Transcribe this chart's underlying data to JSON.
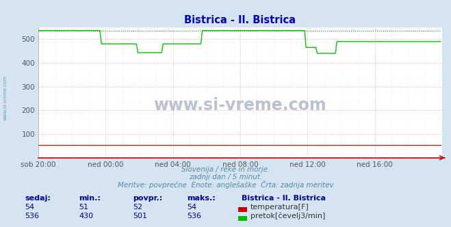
{
  "title": "Bistrica - Il. Bistrica",
  "title_color": "#0000cc",
  "bg_color": "#d4e4f0",
  "plot_bg_color": "#ffffff",
  "xlim": [
    0,
    288
  ],
  "ylim": [
    0,
    550
  ],
  "yticks": [
    100,
    200,
    300,
    400,
    500
  ],
  "xtick_labels": [
    "sob 20:00",
    "ned 00:00",
    "ned 04:00",
    "ned 08:00",
    "ned 12:00",
    "ned 16:00"
  ],
  "xtick_positions": [
    0,
    48,
    96,
    144,
    192,
    240
  ],
  "grid_color_h": "#ff9999",
  "temp_color": "#dd0000",
  "flow_color": "#00cc00",
  "flow_max_color": "#00aa00",
  "temp_value": 54,
  "flow_max": 536,
  "subtitle1": "Slovenija / reke in morje.",
  "subtitle2": "zadnji dan / 5 minut.",
  "subtitle3": "Meritve: povprečne  Enote: anglešaške  Črta: zadnja meritev",
  "subtitle_color": "#5588aa",
  "watermark": "www.si-vreme.com",
  "watermark_color": "#1a3a6e",
  "table_title": "Bistrica - Il. Bistrica",
  "table_headers": [
    "sedaj:",
    "min.:",
    "povpr.:",
    "maks.:"
  ],
  "temp_row": [
    "54",
    "51",
    "52",
    "54"
  ],
  "flow_row": [
    "536",
    "430",
    "501",
    "536"
  ],
  "table_color": "#0000aa",
  "sidebar_text": "www.si-vreme.com",
  "sidebar_color": "#5588aa"
}
